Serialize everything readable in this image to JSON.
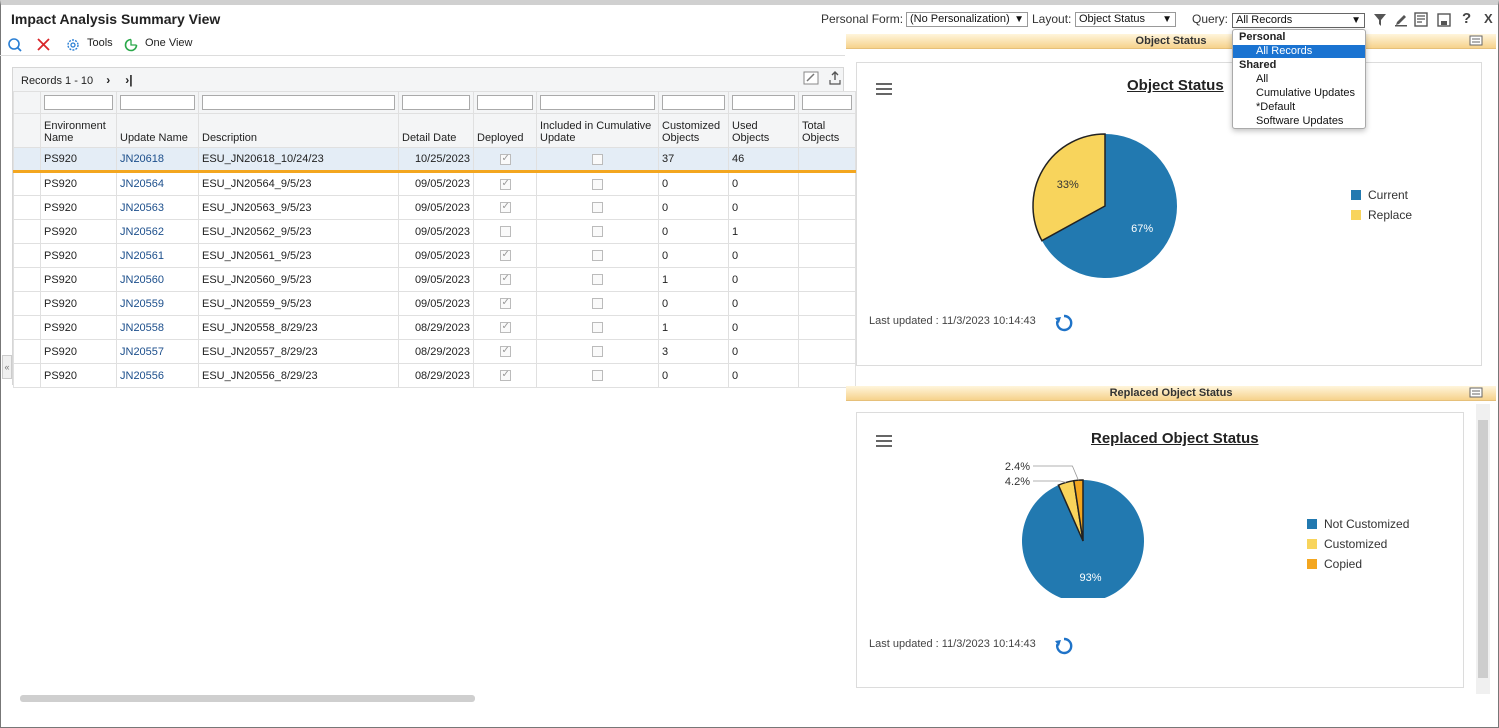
{
  "app": {
    "title": "Impact Analysis Summary View"
  },
  "header": {
    "personal_form_label": "Personal Form:",
    "personal_form_value": "(No Personalization)",
    "layout_label": "Layout:",
    "layout_value": "Object Status",
    "query_label": "Query:",
    "query_value": "All Records",
    "icons": [
      "filter-icon",
      "edit-icon",
      "notes-icon",
      "save-icon",
      "help-icon",
      "close-icon"
    ]
  },
  "toolbar": {
    "tools_label": "Tools",
    "one_view_label": "One View"
  },
  "grid": {
    "records_label": "Records 1 - 10",
    "columns": [
      "Environment Name",
      "Update Name",
      "Description",
      "Detail Date",
      "Deployed",
      "Included in Cumulative Update",
      "Customized Objects",
      "Used Objects",
      "Total Objects"
    ],
    "rows": [
      {
        "env": "PS920",
        "update": "JN20618",
        "desc": "ESU_JN20618_10/24/23",
        "date": "10/25/2023",
        "deployed": true,
        "included": false,
        "customized": "37",
        "used": "46",
        "total": ""
      },
      {
        "env": "PS920",
        "update": "JN20564",
        "desc": "ESU_JN20564_9/5/23",
        "date": "09/05/2023",
        "deployed": true,
        "included": false,
        "customized": "0",
        "used": "0",
        "total": ""
      },
      {
        "env": "PS920",
        "update": "JN20563",
        "desc": "ESU_JN20563_9/5/23",
        "date": "09/05/2023",
        "deployed": true,
        "included": false,
        "customized": "0",
        "used": "0",
        "total": ""
      },
      {
        "env": "PS920",
        "update": "JN20562",
        "desc": "ESU_JN20562_9/5/23",
        "date": "09/05/2023",
        "deployed": false,
        "included": false,
        "customized": "0",
        "used": "1",
        "total": ""
      },
      {
        "env": "PS920",
        "update": "JN20561",
        "desc": "ESU_JN20561_9/5/23",
        "date": "09/05/2023",
        "deployed": true,
        "included": false,
        "customized": "0",
        "used": "0",
        "total": ""
      },
      {
        "env": "PS920",
        "update": "JN20560",
        "desc": "ESU_JN20560_9/5/23",
        "date": "09/05/2023",
        "deployed": true,
        "included": false,
        "customized": "1",
        "used": "0",
        "total": ""
      },
      {
        "env": "PS920",
        "update": "JN20559",
        "desc": "ESU_JN20559_9/5/23",
        "date": "09/05/2023",
        "deployed": true,
        "included": false,
        "customized": "0",
        "used": "0",
        "total": ""
      },
      {
        "env": "PS920",
        "update": "JN20558",
        "desc": "ESU_JN20558_8/29/23",
        "date": "08/29/2023",
        "deployed": true,
        "included": false,
        "customized": "1",
        "used": "0",
        "total": ""
      },
      {
        "env": "PS920",
        "update": "JN20557",
        "desc": "ESU_JN20557_8/29/23",
        "date": "08/29/2023",
        "deployed": true,
        "included": false,
        "customized": "3",
        "used": "0",
        "total": ""
      },
      {
        "env": "PS920",
        "update": "JN20556",
        "desc": "ESU_JN20556_8/29/23",
        "date": "08/29/2023",
        "deployed": true,
        "included": false,
        "customized": "0",
        "used": "0",
        "total": ""
      }
    ]
  },
  "panels": {
    "object_status_bar": "Object Status",
    "replaced_bar": "Replaced Object Status"
  },
  "dropdown": {
    "personal_label": "Personal",
    "personal_options": [
      "All Records"
    ],
    "shared_label": "Shared",
    "shared_options": [
      "All",
      "Cumulative Updates",
      "*Default",
      "Software Updates"
    ],
    "selected": "All Records"
  },
  "chart_data": [
    {
      "type": "pie",
      "title": "Object Status",
      "slices": [
        {
          "label": "Current",
          "value": 67,
          "display": "67%",
          "color": "#2279b0"
        },
        {
          "label": "Replace",
          "value": 33,
          "display": "33%",
          "color": "#f8d45c"
        }
      ],
      "legend": "right",
      "last_updated": "Last updated : 11/3/2023 10:14:43"
    },
    {
      "type": "pie",
      "title": "Replaced Object Status",
      "slices": [
        {
          "label": "Not Customized",
          "value": 93.4,
          "display": "93%",
          "color": "#2279b0"
        },
        {
          "label": "Customized",
          "value": 4.2,
          "display": "4.2%",
          "color": "#f8d45c"
        },
        {
          "label": "Copied",
          "value": 2.4,
          "display": "2.4%",
          "color": "#f3a61f"
        }
      ],
      "legend": "right",
      "last_updated": "Last updated : 11/3/2023 10:14:43"
    }
  ]
}
